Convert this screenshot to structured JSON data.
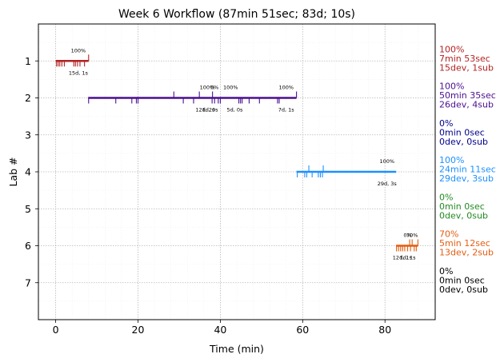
{
  "chart_data": {
    "type": "timeline",
    "title": "Week 6 Workflow (87min 51sec; 83d; 10s)",
    "xlabel": "Time (min)",
    "ylabel": "Lab #",
    "xlim": [
      -4.2,
      92.2
    ],
    "ylim": [
      8.0,
      0.0
    ],
    "xticks": [
      0,
      20,
      40,
      60,
      80
    ],
    "yticks": [
      1,
      2,
      3,
      4,
      5,
      6,
      7
    ],
    "grid": true,
    "labs": [
      {
        "lab": 1,
        "color": "#b22222",
        "start": 0.0,
        "end": 8.0,
        "ticks_below": [
          0.2,
          0.6,
          1.0,
          1.5,
          2.1,
          4.4,
          4.8,
          5.3,
          5.9,
          7.0
        ],
        "ticks_above": [
          8.0
        ],
        "annotations": [
          {
            "x": 5.5,
            "text": "100%",
            "pos": "above"
          },
          {
            "x": 5.5,
            "text": "15d, 1s",
            "pos": "below"
          }
        ],
        "summary": [
          "100%",
          "7min 53sec",
          "15dev, 1sub"
        ]
      },
      {
        "lab": 2,
        "color": "#4b0f8f",
        "start": 7.9,
        "end": 58.5,
        "ticks_below": [
          8.0,
          14.6,
          18.5,
          19.6,
          20.0,
          31.0,
          33.5,
          38.0,
          38.6,
          39.5,
          40.0,
          44.5,
          44.9,
          45.3,
          47.0,
          49.5,
          53.9,
          54.3
        ],
        "ticks_above": [
          28.7,
          34.9,
          38.1,
          58.5
        ],
        "annotations": [
          {
            "x": 36.8,
            "text": "100%",
            "pos": "above"
          },
          {
            "x": 38.6,
            "text": "0%",
            "pos": "above"
          },
          {
            "x": 42.5,
            "text": "100%",
            "pos": "above"
          },
          {
            "x": 56.0,
            "text": "100%",
            "pos": "above"
          },
          {
            "x": 36.3,
            "text": "12d, 2s",
            "pos": "below"
          },
          {
            "x": 37.5,
            "text": "1d, 0s",
            "pos": "below"
          },
          {
            "x": 43.5,
            "text": "5d, 0s",
            "pos": "below"
          },
          {
            "x": 56.0,
            "text": "7d, 1s",
            "pos": "below"
          }
        ],
        "summary": [
          "100%",
          "50min 35sec",
          "26dev, 4sub"
        ]
      },
      {
        "lab": 3,
        "color": "#00008b",
        "start": null,
        "end": null,
        "ticks_below": [],
        "ticks_above": [],
        "annotations": [],
        "summary": [
          "0%",
          "0min 0sec",
          "0dev, 0sub"
        ]
      },
      {
        "lab": 4,
        "color": "#1e90ff",
        "start": 58.5,
        "end": 82.7,
        "ticks_below": [
          58.7,
          60.5,
          61.0,
          62.3,
          63.8,
          64.3,
          64.8
        ],
        "ticks_above": [
          61.5,
          65.0
        ],
        "annotations": [
          {
            "x": 80.5,
            "text": "100%",
            "pos": "above"
          },
          {
            "x": 80.5,
            "text": "29d, 3s",
            "pos": "below"
          }
        ],
        "summary": [
          "100%",
          "24min 11sec",
          "29dev, 3sub"
        ]
      },
      {
        "lab": 5,
        "color": "#228b22",
        "start": null,
        "end": null,
        "ticks_below": [],
        "ticks_above": [],
        "annotations": [],
        "summary": [
          "0%",
          "0min 0sec",
          "0dev, 0sub"
        ]
      },
      {
        "lab": 6,
        "color": "#e35d10",
        "start": 82.7,
        "end": 88.0,
        "ticks_below": [
          82.8,
          83.3,
          83.8,
          84.3,
          84.8,
          85.5,
          86.2,
          87.1,
          87.6
        ],
        "ticks_above": [
          86.0,
          86.6,
          88.0
        ],
        "annotations": [
          {
            "x": 85.5,
            "text": "0%",
            "pos": "above"
          },
          {
            "x": 86.6,
            "text": "70%",
            "pos": "above"
          },
          {
            "x": 84.2,
            "text": "12d, 1s",
            "pos": "below"
          },
          {
            "x": 85.5,
            "text": "1d, 1s",
            "pos": "below"
          }
        ],
        "summary": [
          "70%",
          "5min 12sec",
          "13dev, 2sub"
        ]
      },
      {
        "lab": 7,
        "color": "#000000",
        "start": null,
        "end": null,
        "ticks_below": [],
        "ticks_above": [],
        "annotations": [],
        "summary": [
          "0%",
          "0min 0sec",
          "0dev, 0sub"
        ]
      }
    ]
  }
}
